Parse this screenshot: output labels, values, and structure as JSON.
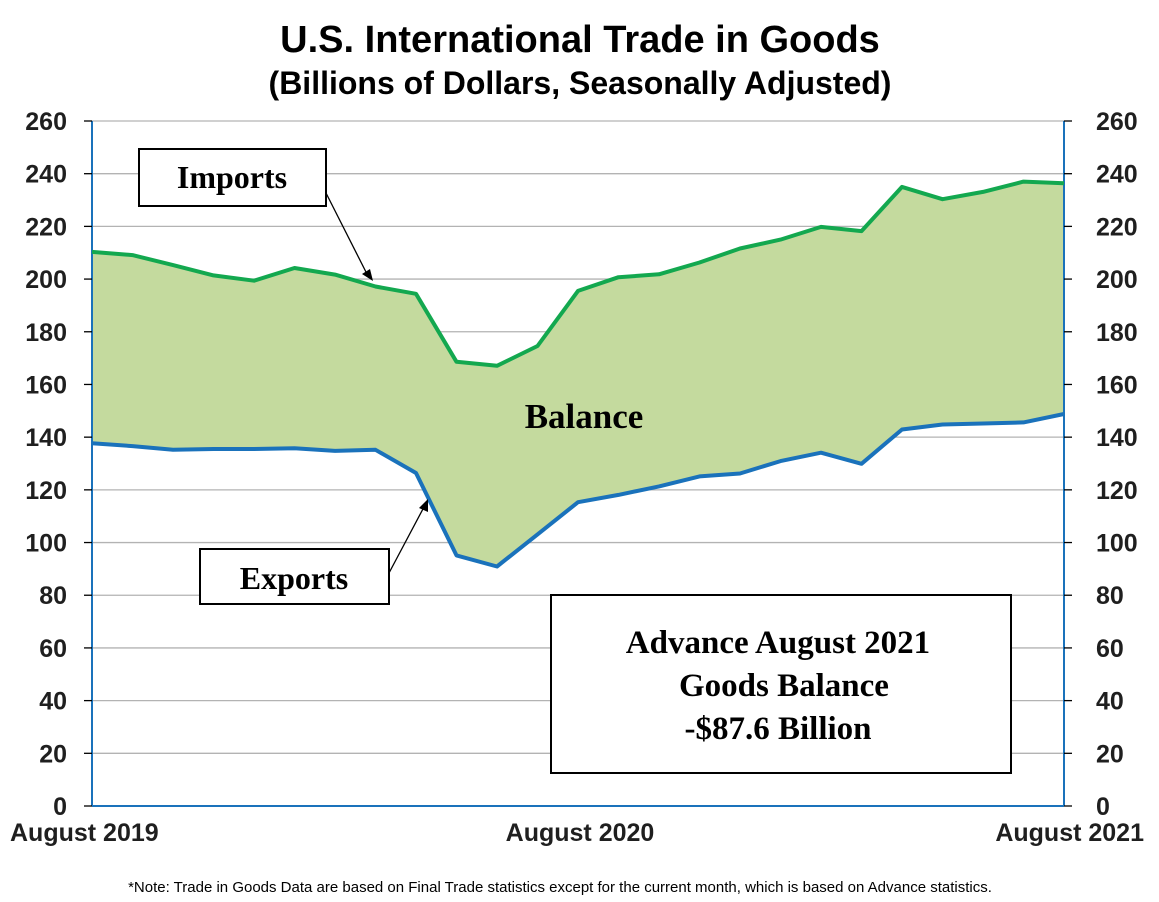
{
  "chart_data": {
    "type": "area",
    "title": "U.S. International Trade in Goods",
    "subtitle": "(Billions of Dollars, Seasonally Adjusted)",
    "x": [
      "Aug 2019",
      "Sep 2019",
      "Oct 2019",
      "Nov 2019",
      "Dec 2019",
      "Jan 2020",
      "Feb 2020",
      "Mar 2020",
      "Apr 2020",
      "May 2020",
      "Jun 2020",
      "Jul 2020",
      "Aug 2020",
      "Sep 2020",
      "Oct 2020",
      "Nov 2020",
      "Dec 2020",
      "Jan 2021",
      "Feb 2021",
      "Mar 2021",
      "Apr 2021",
      "May 2021",
      "Jun 2021",
      "Jul 2021",
      "Aug 2021"
    ],
    "x_tick_labels": [
      "August 2019",
      "August 2020",
      "August 2021"
    ],
    "series": [
      {
        "name": "Imports",
        "color": "#13a84f",
        "values": [
          210.3,
          209.1,
          205.3,
          201.4,
          199.4,
          204.2,
          201.7,
          197.2,
          194.4,
          168.6,
          167.1,
          174.6,
          195.5,
          200.7,
          201.8,
          206.3,
          211.6,
          215.0,
          219.8,
          218.2,
          235.0,
          230.3,
          233.1,
          237.0,
          236.4
        ]
      },
      {
        "name": "Exports",
        "color": "#1a72bb",
        "values": [
          137.7,
          136.6,
          135.2,
          135.5,
          135.5,
          135.8,
          134.8,
          135.2,
          126.4,
          95.1,
          90.9,
          103.1,
          115.3,
          118.1,
          121.3,
          125.1,
          126.2,
          130.9,
          134.1,
          129.9,
          142.9,
          144.8,
          145.2,
          145.6,
          148.8
        ]
      }
    ],
    "area_color": "#c4da9e",
    "ylim": [
      0,
      260
    ],
    "y_ticks": [
      0,
      20,
      40,
      60,
      80,
      100,
      120,
      140,
      160,
      180,
      200,
      220,
      240,
      260
    ],
    "grid": true,
    "secondary_y_axis": true
  },
  "labels": {
    "imports": "Imports",
    "exports": "Exports",
    "balance": "Balance"
  },
  "callout": {
    "line1": "Advance August 2021",
    "line2": "Goods Balance",
    "line3": "-$87.6 Billion"
  },
  "note": "*Note: Trade in Goods Data are based on Final Trade statistics except for the current month, which is based on Advance statistics."
}
